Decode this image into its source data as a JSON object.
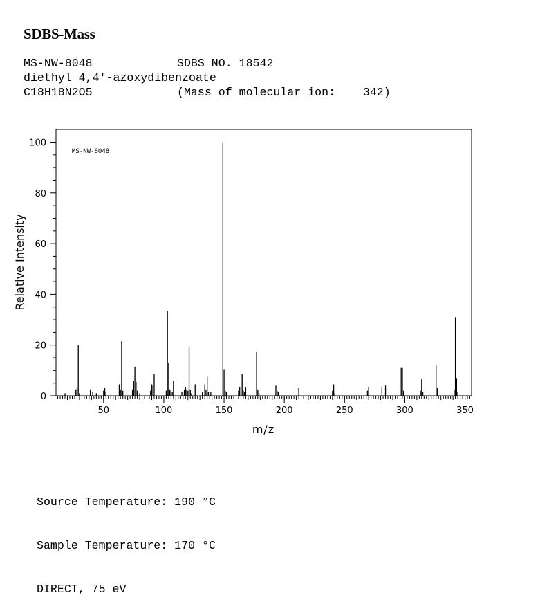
{
  "header": {
    "title": "SDBS-Mass",
    "spectrum_id": "MS-NW-8048",
    "sdbs_no": "SDBS NO. 18542",
    "compound_name": "diethyl 4,4'-azoxydibenzoate",
    "formula": "C18H18N2O5",
    "molecular_ion": "(Mass of molecular ion:    342)"
  },
  "footer": {
    "source_temperature": "Source Temperature: 190 °C",
    "sample_temperature": "Sample Temperature: 170 °C",
    "ionization": "DIRECT, 75 eV"
  },
  "chart_data": {
    "type": "bar",
    "plot_label": "MS-NW-8048",
    "xlabel": "m/z",
    "ylabel": "Relative Intensity",
    "xlim": [
      10,
      355
    ],
    "ylim": [
      0,
      105
    ],
    "x_ticks": [
      50,
      100,
      150,
      200,
      250,
      300,
      350
    ],
    "y_ticks": [
      0,
      20,
      40,
      60,
      80,
      100
    ],
    "grid": false,
    "line_color": "#000000",
    "peaks": [
      [
        18,
        1.0
      ],
      [
        27,
        2.5
      ],
      [
        28,
        3.0
      ],
      [
        29,
        20.0
      ],
      [
        30,
        1.0
      ],
      [
        39,
        2.5
      ],
      [
        41,
        1.5
      ],
      [
        44,
        1.0
      ],
      [
        50,
        2.0
      ],
      [
        51,
        3.0
      ],
      [
        52,
        1.5
      ],
      [
        63,
        4.5
      ],
      [
        64,
        2.5
      ],
      [
        65,
        21.5
      ],
      [
        66,
        2.0
      ],
      [
        74,
        2.5
      ],
      [
        75,
        6.0
      ],
      [
        76,
        11.5
      ],
      [
        77,
        5.5
      ],
      [
        78,
        2.0
      ],
      [
        80,
        1.0
      ],
      [
        89,
        2.0
      ],
      [
        90,
        4.5
      ],
      [
        91,
        4.0
      ],
      [
        92,
        8.5
      ],
      [
        102,
        2.0
      ],
      [
        103,
        33.5
      ],
      [
        104,
        13.0
      ],
      [
        105,
        2.5
      ],
      [
        106,
        2.0
      ],
      [
        107,
        1.5
      ],
      [
        108,
        6.0
      ],
      [
        115,
        1.5
      ],
      [
        117,
        2.5
      ],
      [
        118,
        3.5
      ],
      [
        119,
        2.5
      ],
      [
        120,
        2.0
      ],
      [
        121,
        19.5
      ],
      [
        122,
        2.5
      ],
      [
        123,
        1.0
      ],
      [
        126,
        4.5
      ],
      [
        132,
        1.5
      ],
      [
        134,
        4.5
      ],
      [
        135,
        2.5
      ],
      [
        136,
        7.5
      ],
      [
        137,
        1.5
      ],
      [
        139,
        1.5
      ],
      [
        149,
        100.0
      ],
      [
        150,
        10.5
      ],
      [
        151,
        2.0
      ],
      [
        152,
        1.5
      ],
      [
        162,
        2.0
      ],
      [
        163,
        3.5
      ],
      [
        165,
        8.5
      ],
      [
        166,
        2.0
      ],
      [
        167,
        1.5
      ],
      [
        168,
        3.5
      ],
      [
        177,
        17.5
      ],
      [
        178,
        2.5
      ],
      [
        179,
        1.0
      ],
      [
        193,
        4.0
      ],
      [
        194,
        2.0
      ],
      [
        195,
        1.5
      ],
      [
        212,
        3.0
      ],
      [
        240,
        2.0
      ],
      [
        241,
        4.5
      ],
      [
        242,
        1.0
      ],
      [
        269,
        2.0
      ],
      [
        270,
        3.5
      ],
      [
        281,
        3.5
      ],
      [
        284,
        4.0
      ],
      [
        297,
        11.0
      ],
      [
        298,
        11.0
      ],
      [
        299,
        2.0
      ],
      [
        313,
        2.0
      ],
      [
        314,
        6.5
      ],
      [
        315,
        1.5
      ],
      [
        326,
        12.0
      ],
      [
        327,
        3.0
      ],
      [
        341,
        2.5
      ],
      [
        342,
        31.0
      ],
      [
        343,
        7.0
      ],
      [
        344,
        1.5
      ]
    ]
  }
}
